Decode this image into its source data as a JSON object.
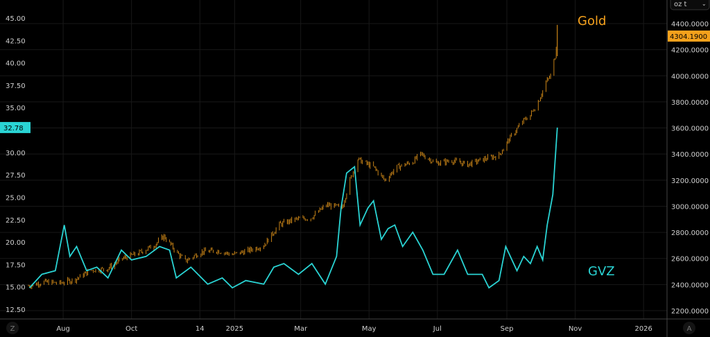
{
  "header": {
    "unit_select": "oz t"
  },
  "buttons": {
    "log_scale": "Z",
    "auto_scale": "A"
  },
  "colors": {
    "gold": "#f5a11c",
    "gvz": "#2ad4d4",
    "grid": "#181818",
    "axis_text": "#d0d0d0"
  },
  "chart_data": {
    "type": "line",
    "title": "",
    "annotations": [
      "Gold",
      "GVZ"
    ],
    "x_ticks": [
      {
        "label": "Aug",
        "date": "2024-08-01"
      },
      {
        "label": "Oct",
        "date": "2024-10-01"
      },
      {
        "label": "14",
        "date": "2024-12-01"
      },
      {
        "label": "2025",
        "date": "2025-01-01"
      },
      {
        "label": "Mar",
        "date": "2025-03-01"
      },
      {
        "label": "May",
        "date": "2025-05-01"
      },
      {
        "label": "Jul",
        "date": "2025-07-01"
      },
      {
        "label": "Sep",
        "date": "2025-09-01"
      },
      {
        "label": "Nov",
        "date": "2025-11-01"
      },
      {
        "label": "2026",
        "date": "2026-01-01"
      }
    ],
    "x_range": [
      "2024-07-01",
      "2026-02-05"
    ],
    "left_axis": {
      "ylim": [
        12.5,
        45
      ],
      "ticks": [
        "45.00",
        "42.50",
        "40.00",
        "37.50",
        "35.00",
        "30.00",
        "27.50",
        "25.00",
        "22.50",
        "20.00",
        "17.50",
        "15.00",
        "12.50"
      ],
      "last_value_label": "32.78",
      "last_value": 32.78
    },
    "right_axis": {
      "ylim": [
        2200,
        4400
      ],
      "ticks": [
        "4400.0000",
        "4200.0000",
        "4000.0000",
        "3800.0000",
        "3600.0000",
        "3400.0000",
        "3200.0000",
        "3000.0000",
        "2800.0000",
        "2600.0000",
        "2400.0000",
        "2200.0000"
      ],
      "last_value_label": "4304.1900",
      "last_value": 4304.19
    },
    "series": [
      {
        "name": "Gold",
        "type": "candlestick",
        "axis": "right",
        "points": [
          [
            "2024-07-01",
            2390
          ],
          [
            "2024-07-15",
            2420
          ],
          [
            "2024-07-29",
            2410
          ],
          [
            "2024-08-12",
            2440
          ],
          [
            "2024-08-26",
            2510
          ],
          [
            "2024-09-09",
            2520
          ],
          [
            "2024-09-23",
            2600
          ],
          [
            "2024-10-07",
            2640
          ],
          [
            "2024-10-21",
            2700
          ],
          [
            "2024-10-30",
            2770
          ],
          [
            "2024-11-11",
            2640
          ],
          [
            "2024-11-18",
            2580
          ],
          [
            "2024-12-02",
            2650
          ],
          [
            "2024-12-16",
            2660
          ],
          [
            "2024-12-30",
            2630
          ],
          [
            "2025-01-13",
            2660
          ],
          [
            "2025-01-27",
            2700
          ],
          [
            "2025-02-10",
            2860
          ],
          [
            "2025-02-24",
            2900
          ],
          [
            "2025-03-10",
            2910
          ],
          [
            "2025-03-24",
            3010
          ],
          [
            "2025-04-07",
            2990
          ],
          [
            "2025-04-14",
            3200
          ],
          [
            "2025-04-21",
            3360
          ],
          [
            "2025-05-05",
            3300
          ],
          [
            "2025-05-15",
            3200
          ],
          [
            "2025-05-26",
            3300
          ],
          [
            "2025-06-09",
            3340
          ],
          [
            "2025-06-16",
            3400
          ],
          [
            "2025-06-30",
            3330
          ],
          [
            "2025-07-14",
            3350
          ],
          [
            "2025-07-28",
            3320
          ],
          [
            "2025-08-11",
            3360
          ],
          [
            "2025-08-25",
            3390
          ],
          [
            "2025-09-02",
            3500
          ],
          [
            "2025-09-15",
            3650
          ],
          [
            "2025-09-22",
            3700
          ],
          [
            "2025-09-29",
            3800
          ],
          [
            "2025-10-06",
            3950
          ],
          [
            "2025-10-10",
            4000
          ],
          [
            "2025-10-14",
            4150
          ],
          [
            "2025-10-16",
            4304.19
          ]
        ]
      },
      {
        "name": "GVZ",
        "type": "line",
        "axis": "left",
        "points": [
          [
            "2024-07-02",
            14.9
          ],
          [
            "2024-07-13",
            16.4
          ],
          [
            "2024-07-25",
            16.8
          ],
          [
            "2024-08-02",
            21.9
          ],
          [
            "2024-08-07",
            18.4
          ],
          [
            "2024-08-13",
            19.5
          ],
          [
            "2024-08-22",
            16.8
          ],
          [
            "2024-08-31",
            17.2
          ],
          [
            "2024-09-10",
            16.0
          ],
          [
            "2024-09-22",
            19.1
          ],
          [
            "2024-10-01",
            18.0
          ],
          [
            "2024-10-14",
            18.4
          ],
          [
            "2024-10-26",
            19.5
          ],
          [
            "2024-11-04",
            19.1
          ],
          [
            "2024-11-10",
            16.0
          ],
          [
            "2024-11-23",
            17.2
          ],
          [
            "2024-12-08",
            15.3
          ],
          [
            "2024-12-21",
            16.0
          ],
          [
            "2024-12-30",
            14.9
          ],
          [
            "2025-01-11",
            15.7
          ],
          [
            "2025-01-27",
            15.3
          ],
          [
            "2025-02-05",
            17.2
          ],
          [
            "2025-02-14",
            17.6
          ],
          [
            "2025-02-27",
            16.4
          ],
          [
            "2025-03-11",
            17.6
          ],
          [
            "2025-03-23",
            15.3
          ],
          [
            "2025-04-02",
            18.4
          ],
          [
            "2025-04-06",
            23.8
          ],
          [
            "2025-04-11",
            27.7
          ],
          [
            "2025-04-18",
            28.4
          ],
          [
            "2025-04-23",
            21.9
          ],
          [
            "2025-04-30",
            23.8
          ],
          [
            "2025-05-05",
            24.6
          ],
          [
            "2025-05-12",
            20.3
          ],
          [
            "2025-05-18",
            21.5
          ],
          [
            "2025-05-24",
            21.9
          ],
          [
            "2025-05-31",
            19.5
          ],
          [
            "2025-06-09",
            21.1
          ],
          [
            "2025-06-18",
            19.1
          ],
          [
            "2025-06-27",
            16.4
          ],
          [
            "2025-07-07",
            16.4
          ],
          [
            "2025-07-19",
            19.1
          ],
          [
            "2025-07-28",
            16.4
          ],
          [
            "2025-08-10",
            16.4
          ],
          [
            "2025-08-16",
            14.9
          ],
          [
            "2025-08-25",
            15.7
          ],
          [
            "2025-08-31",
            19.5
          ],
          [
            "2025-09-10",
            16.8
          ],
          [
            "2025-09-16",
            18.4
          ],
          [
            "2025-09-22",
            17.6
          ],
          [
            "2025-09-28",
            19.5
          ],
          [
            "2025-10-03",
            18.0
          ],
          [
            "2025-10-07",
            21.9
          ],
          [
            "2025-10-12",
            25.3
          ],
          [
            "2025-10-16",
            32.78
          ]
        ]
      }
    ]
  }
}
